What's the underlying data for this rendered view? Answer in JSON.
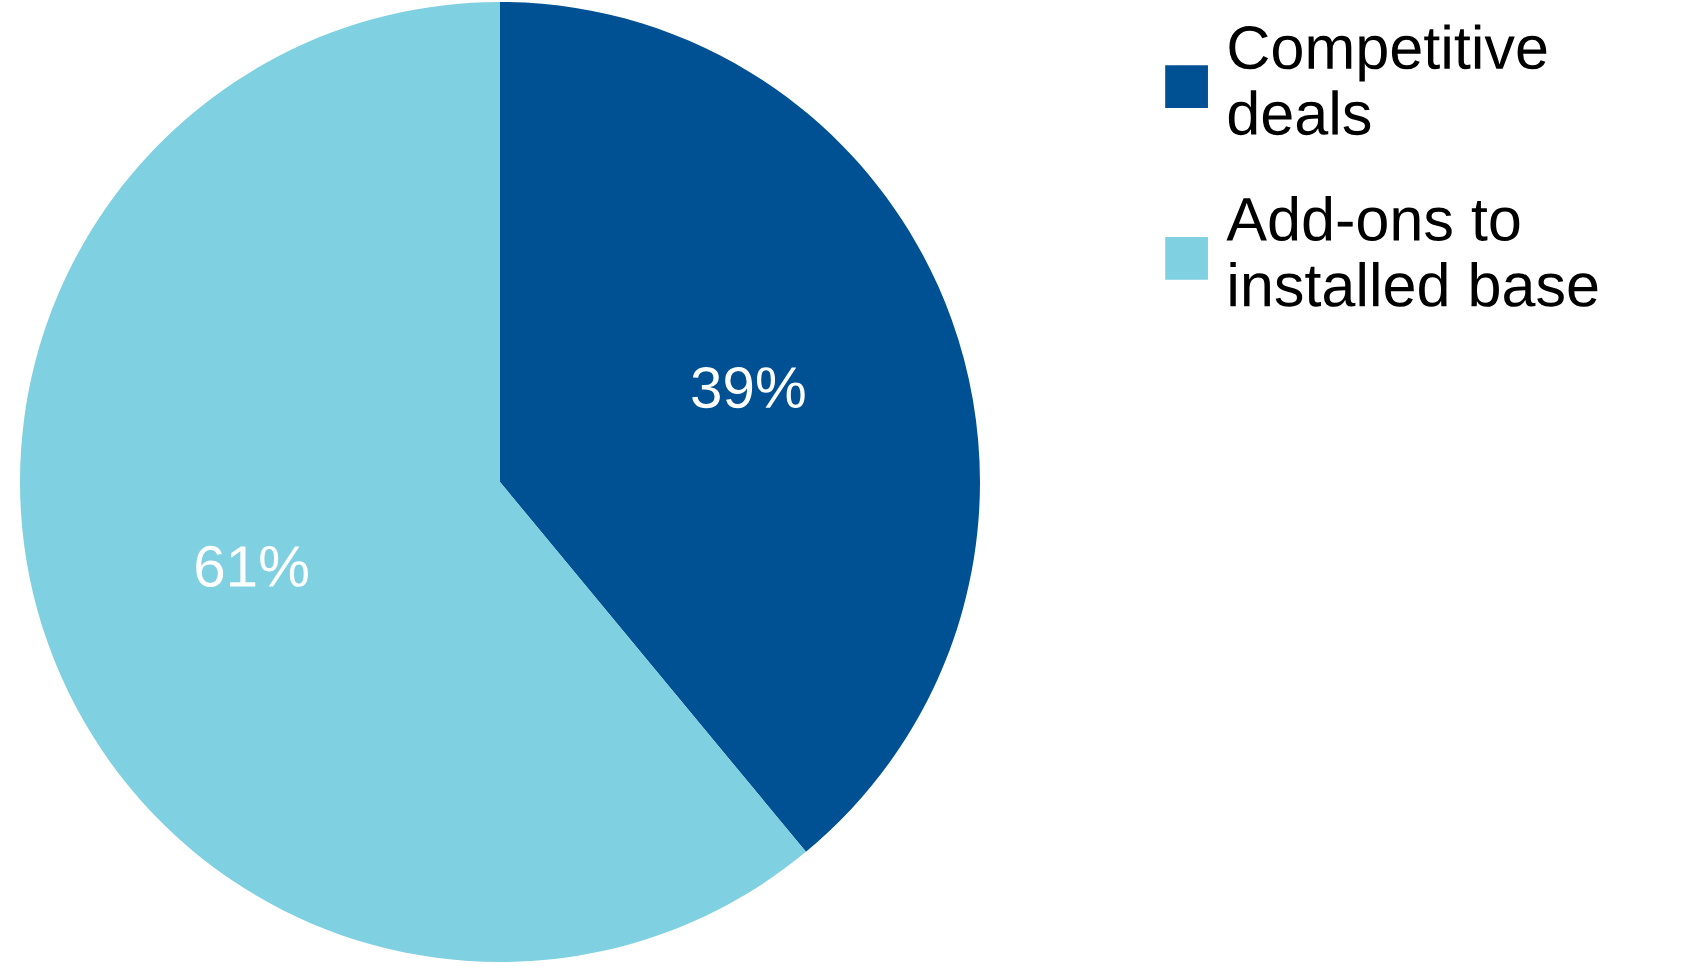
{
  "chart_data": {
    "type": "pie",
    "categories": [
      "Competitive deals",
      "Add-ons to installed base"
    ],
    "values": [
      39,
      61
    ],
    "colors": [
      "#005193",
      "#7fd0e0"
    ],
    "value_labels": [
      "39%",
      "61%"
    ],
    "legend": "top right"
  }
}
